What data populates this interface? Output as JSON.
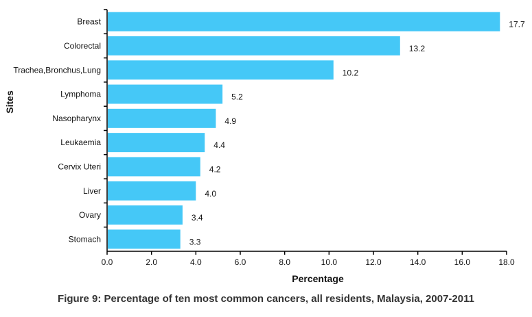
{
  "caption": "Figure 9: Percentage of ten most common cancers, all residents, Malaysia, 2007-2011",
  "colors": {
    "bar": "#45c8f7",
    "axis": "#000000"
  },
  "chart_data": {
    "type": "bar",
    "orientation": "horizontal",
    "title": "",
    "xlabel": "Percentage",
    "ylabel": "Sites",
    "xlim": [
      0,
      18
    ],
    "xticks": [
      "0.0",
      "2.0",
      "4.0",
      "6.0",
      "8.0",
      "10.0",
      "12.0",
      "14.0",
      "16.0",
      "18.0"
    ],
    "grid": false,
    "categories": [
      "Breast",
      "Colorectal",
      "Trachea,Bronchus,Lung",
      "Lymphoma",
      "Nasopharynx",
      "Leukaemia",
      "Cervix Uteri",
      "Liver",
      "Ovary",
      "Stomach"
    ],
    "values": [
      17.7,
      13.2,
      10.2,
      5.2,
      4.9,
      4.4,
      4.2,
      4.0,
      3.4,
      3.3
    ],
    "value_labels": [
      "17.7",
      "13.2",
      "10.2",
      "5.2",
      "4.9",
      "4.4",
      "4.2",
      "4.0",
      "3.4",
      "3.3"
    ]
  }
}
